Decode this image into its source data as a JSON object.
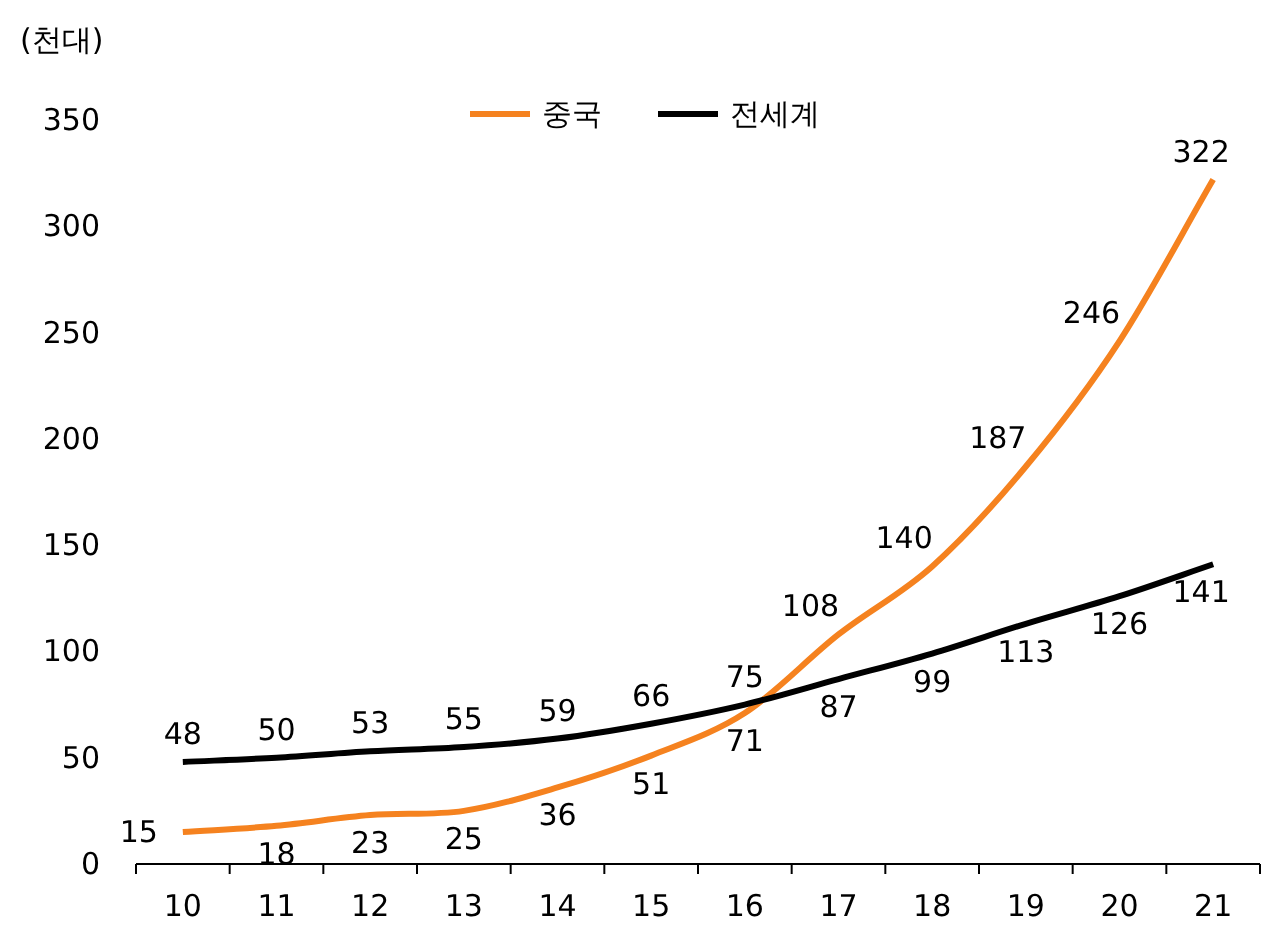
{
  "chart_data": {
    "type": "line",
    "ylabel": "(천대)",
    "categories": [
      "10",
      "11",
      "12",
      "13",
      "14",
      "15",
      "16",
      "17",
      "18",
      "19",
      "20",
      "21"
    ],
    "series": [
      {
        "name": "중국",
        "color": "#f5821f",
        "values": [
          15,
          18,
          23,
          25,
          36,
          51,
          71,
          108,
          140,
          187,
          246,
          322
        ]
      },
      {
        "name": "전세계",
        "color": "#000000",
        "values": [
          48,
          50,
          53,
          55,
          59,
          66,
          75,
          87,
          99,
          113,
          126,
          141
        ]
      }
    ],
    "ylim": [
      0,
      350
    ],
    "yticks": [
      0,
      50,
      100,
      150,
      200,
      250,
      300,
      350
    ],
    "data_labels": true,
    "legend": "top",
    "marker": "none",
    "line_style": "solid",
    "grid": false
  }
}
